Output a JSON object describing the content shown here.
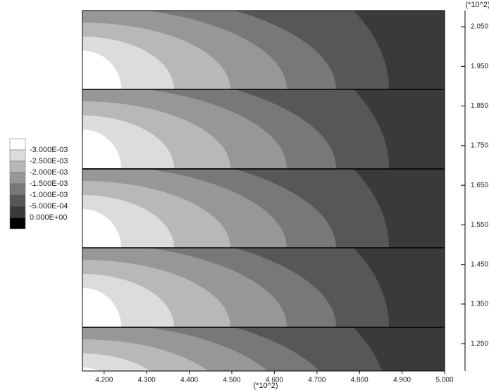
{
  "chart_data": {
    "type": "contour",
    "x_label": "(*10^2)",
    "y_label": "(*10^2)",
    "xlim": [
      4.149,
      5.0
    ],
    "xticks": [
      {
        "value": 4.2,
        "label": "4.200"
      },
      {
        "value": 4.3,
        "label": "4.300"
      },
      {
        "value": 4.4,
        "label": "4.400"
      },
      {
        "value": 4.5,
        "label": "4.500"
      },
      {
        "value": 4.6,
        "label": "4.600"
      },
      {
        "value": 4.7,
        "label": "4.700"
      },
      {
        "value": 4.8,
        "label": "4.800"
      },
      {
        "value": 4.9,
        "label": "4.900"
      },
      {
        "value": 5.0,
        "label": "5.000"
      }
    ],
    "ylim": [
      1.181,
      2.091
    ],
    "yticks": [
      {
        "value": 1.25,
        "label": "1.250"
      },
      {
        "value": 1.35,
        "label": "1.350"
      },
      {
        "value": 1.45,
        "label": "1.450"
      },
      {
        "value": 1.55,
        "label": "1.550"
      },
      {
        "value": 1.65,
        "label": "1.650"
      },
      {
        "value": 1.75,
        "label": "1.750"
      },
      {
        "value": 1.85,
        "label": "1.850"
      },
      {
        "value": 1.95,
        "label": "1.950"
      },
      {
        "value": 2.05,
        "label": "2.050"
      }
    ],
    "levels": [
      {
        "value": -0.003,
        "label": "-3.000E-03"
      },
      {
        "value": -0.0025,
        "label": "-2.500E-03"
      },
      {
        "value": -0.002,
        "label": "-2.000E-03"
      },
      {
        "value": -0.0015,
        "label": "-1.500E-03"
      },
      {
        "value": -0.001,
        "label": "-1.000E-03"
      },
      {
        "value": -0.0005,
        "label": "-5.000E-04"
      },
      {
        "value": 0,
        "label": "0.000E+00"
      }
    ],
    "colors": [
      "#ffffff",
      "#dcdcdc",
      "#b8b8b8",
      "#979797",
      "#787878",
      "#575757",
      "#3a3a3a",
      "#000000"
    ]
  }
}
